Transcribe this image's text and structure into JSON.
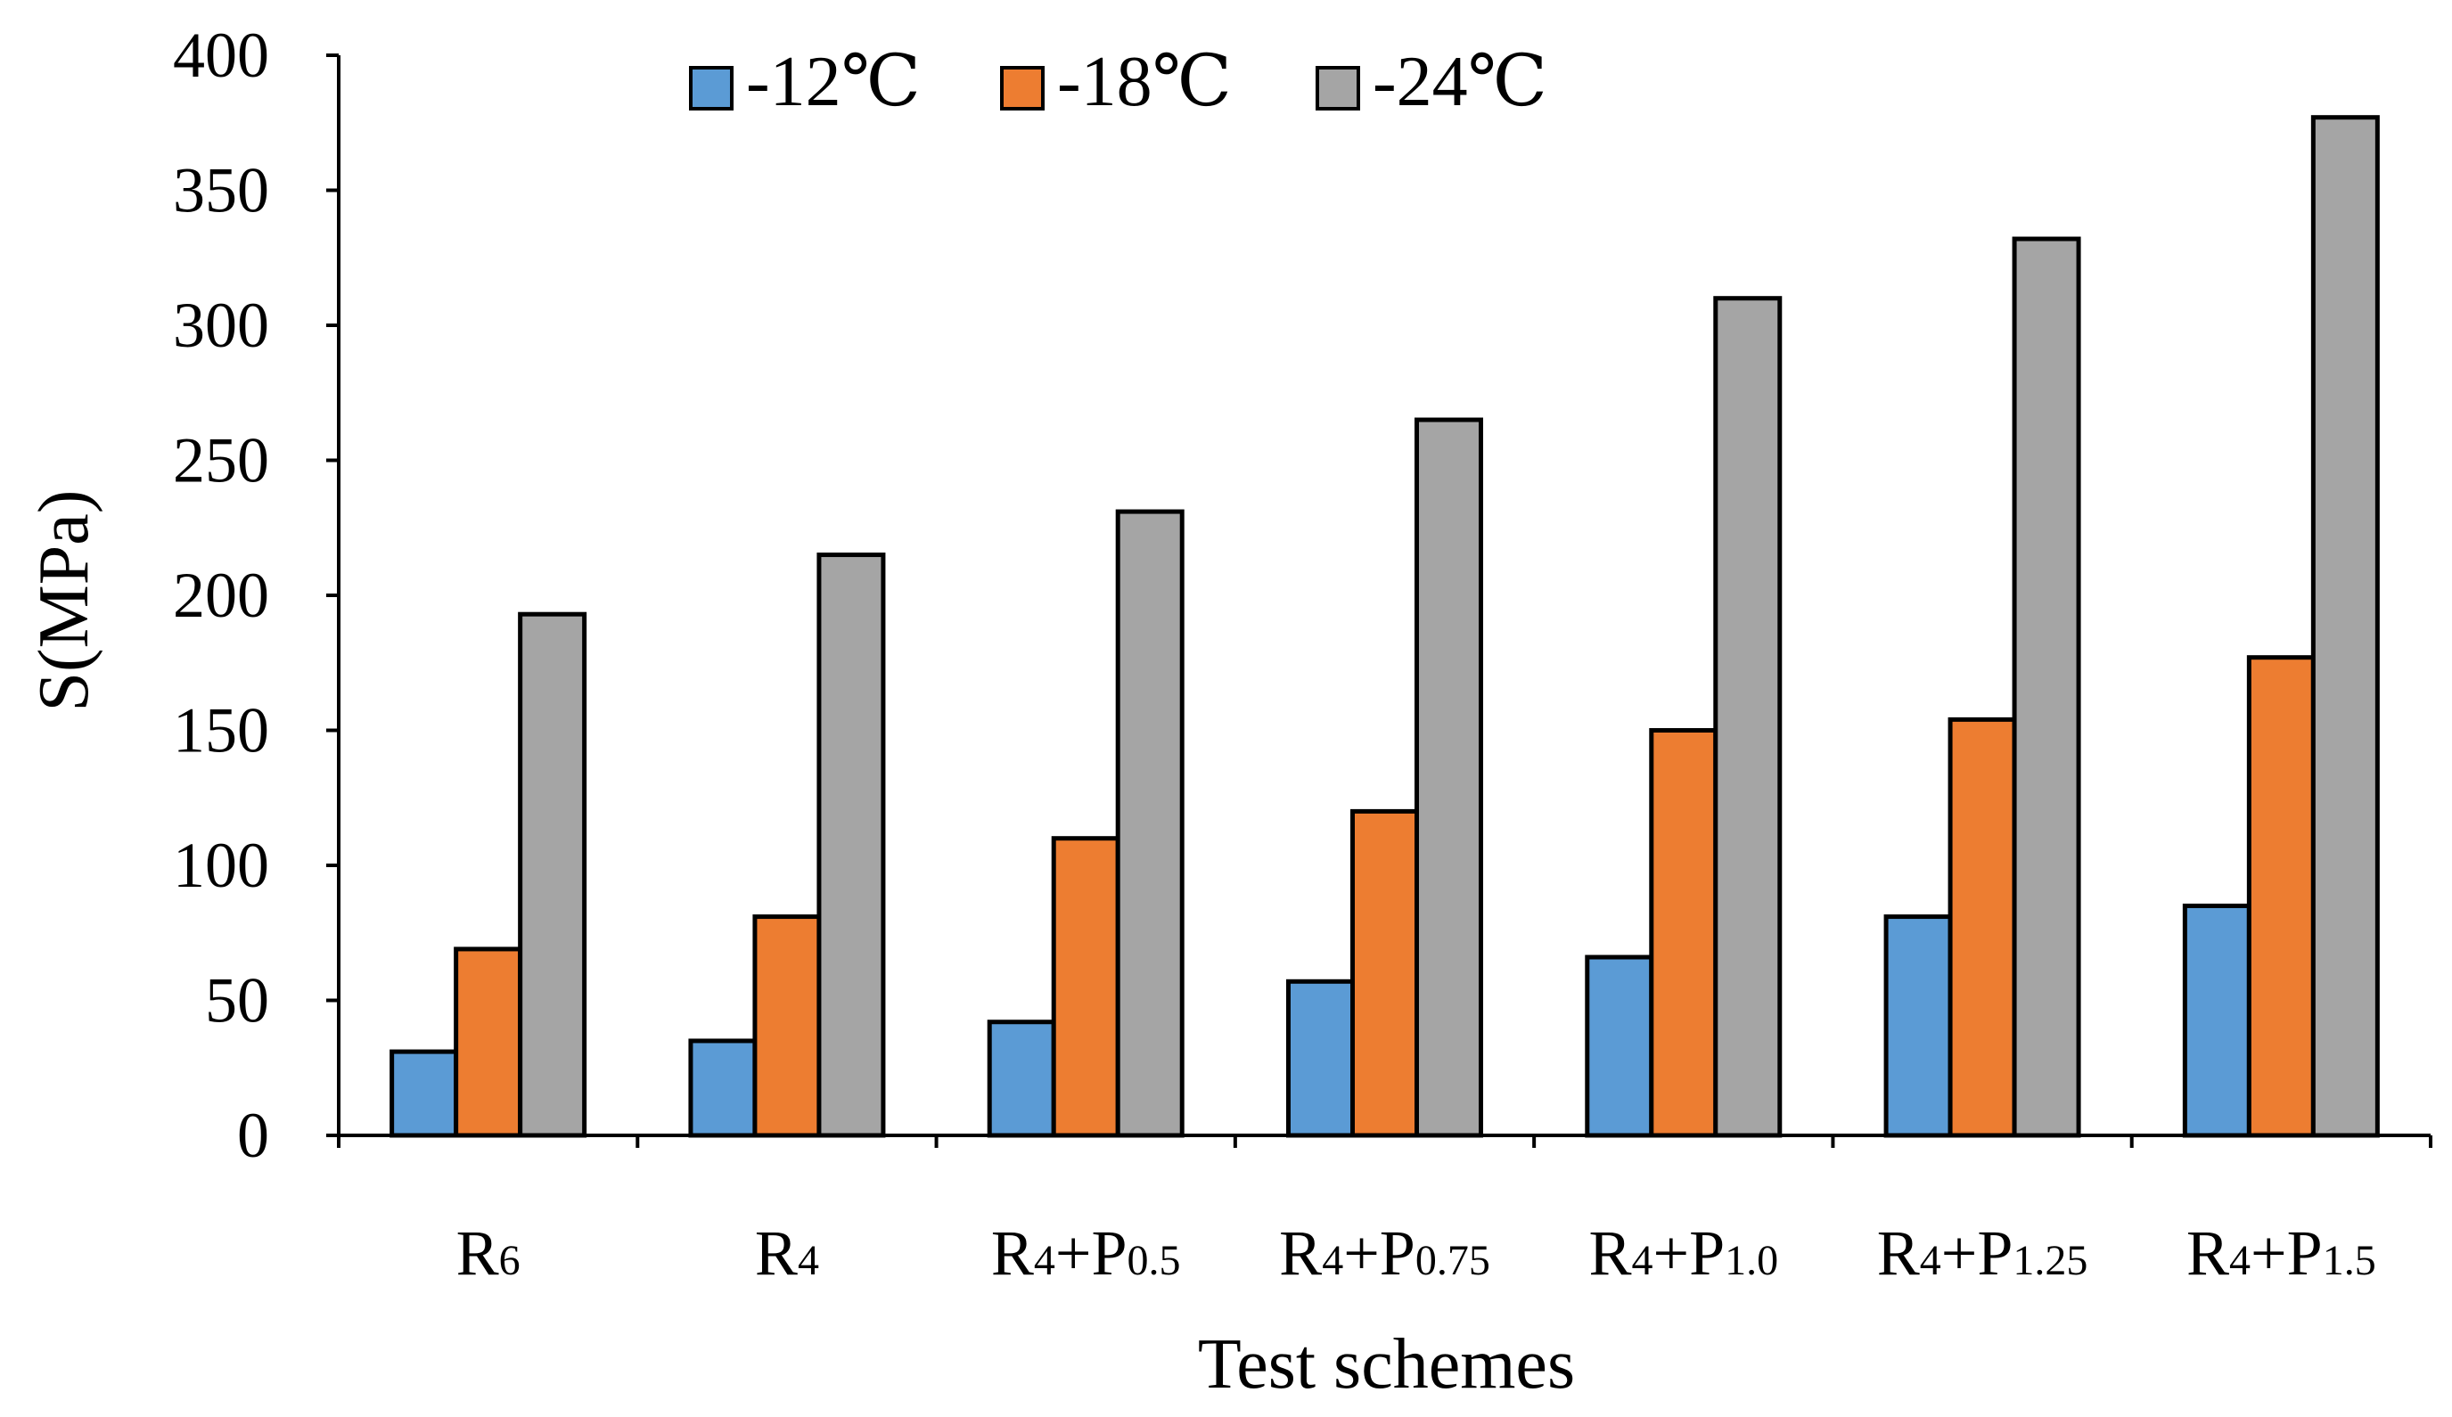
{
  "chart_data": {
    "type": "bar",
    "title": "",
    "xlabel": "Test schemes",
    "ylabel": "S(MPa)",
    "ylim": [
      0,
      400
    ],
    "yticks": [
      0,
      50,
      100,
      150,
      200,
      250,
      300,
      350,
      400
    ],
    "grid": false,
    "legend_position": "top-center",
    "categories": [
      {
        "base": "R",
        "sub": "6",
        "suffix": "",
        "suffix_sub": ""
      },
      {
        "base": "R",
        "sub": "4",
        "suffix": "",
        "suffix_sub": ""
      },
      {
        "base": "R",
        "sub": "4",
        "suffix": "+P",
        "suffix_sub": "0.5"
      },
      {
        "base": "R",
        "sub": "4",
        "suffix": "+P",
        "suffix_sub": "0.75"
      },
      {
        "base": "R",
        "sub": "4",
        "suffix": "+P",
        "suffix_sub": "1.0"
      },
      {
        "base": "R",
        "sub": "4",
        "suffix": "+P",
        "suffix_sub": "1.25"
      },
      {
        "base": "R",
        "sub": "4",
        "suffix": "+P",
        "suffix_sub": "1.5"
      }
    ],
    "series": [
      {
        "name": "-12℃",
        "color": "#5B9BD5",
        "values": [
          31,
          35,
          42,
          57,
          66,
          81,
          85
        ]
      },
      {
        "name": "-18℃",
        "color": "#ED7D31",
        "values": [
          69,
          81,
          110,
          120,
          150,
          154,
          177
        ]
      },
      {
        "name": "-24℃",
        "color": "#A5A5A5",
        "values": [
          193,
          215,
          231,
          265,
          310,
          332,
          377
        ]
      }
    ]
  }
}
